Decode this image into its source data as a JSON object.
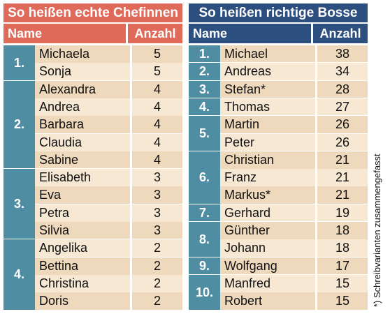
{
  "left": {
    "title": "So heißen echte Chefinnen",
    "col_name": "Name",
    "col_count": "Anzahl",
    "title_color": "#e06a5a",
    "header_color": "#e06a5a",
    "rank_color": "#4e8da2",
    "row_light": "#f7e8d4",
    "row_dark": "#efd9bd",
    "groups": [
      {
        "rank": "1.",
        "rows": [
          {
            "name": "Michaela",
            "count": "5"
          },
          {
            "name": "Sonja",
            "count": "5"
          }
        ]
      },
      {
        "rank": "2.",
        "rows": [
          {
            "name": "Alexandra",
            "count": "4"
          },
          {
            "name": "Andrea",
            "count": "4"
          },
          {
            "name": "Barbara",
            "count": "4"
          },
          {
            "name": "Claudia",
            "count": "4"
          },
          {
            "name": "Sabine",
            "count": "4"
          }
        ]
      },
      {
        "rank": "3.",
        "rows": [
          {
            "name": "Elisabeth",
            "count": "3"
          },
          {
            "name": "Eva",
            "count": "3"
          },
          {
            "name": "Petra",
            "count": "3"
          },
          {
            "name": "Silvia",
            "count": "3"
          }
        ]
      },
      {
        "rank": "4.",
        "rows": [
          {
            "name": "Angelika",
            "count": "2"
          },
          {
            "name": "Bettina",
            "count": "2"
          },
          {
            "name": "Christina",
            "count": "2"
          },
          {
            "name": "Doris",
            "count": "2"
          }
        ]
      }
    ]
  },
  "right": {
    "title": "So heißen richtige Bosse",
    "col_name": "Name",
    "col_count": "Anzahl",
    "title_color": "#2d4f7f",
    "header_color": "#2d4f7f",
    "rank_color": "#4e8da2",
    "row_light": "#f7e8d4",
    "row_dark": "#efd9bd",
    "groups": [
      {
        "rank": "1.",
        "rows": [
          {
            "name": "Michael",
            "count": "38"
          }
        ]
      },
      {
        "rank": "2.",
        "rows": [
          {
            "name": "Andreas",
            "count": "34"
          }
        ]
      },
      {
        "rank": "3.",
        "rows": [
          {
            "name": "Stefan*",
            "count": "28"
          }
        ]
      },
      {
        "rank": "4.",
        "rows": [
          {
            "name": "Thomas",
            "count": "27"
          }
        ]
      },
      {
        "rank": "5.",
        "rows": [
          {
            "name": "Martin",
            "count": "26"
          },
          {
            "name": "Peter",
            "count": "26"
          }
        ]
      },
      {
        "rank": "6.",
        "rows": [
          {
            "name": "Christian",
            "count": "21"
          },
          {
            "name": "Franz",
            "count": "21"
          },
          {
            "name": "Markus*",
            "count": "21"
          }
        ]
      },
      {
        "rank": "7.",
        "rows": [
          {
            "name": "Gerhard",
            "count": "19"
          }
        ]
      },
      {
        "rank": "8.",
        "rows": [
          {
            "name": "Günther",
            "count": "18"
          },
          {
            "name": "Johann",
            "count": "18"
          }
        ]
      },
      {
        "rank": "9.",
        "rows": [
          {
            "name": "Wolfgang",
            "count": "17"
          }
        ]
      },
      {
        "rank": "10.",
        "rows": [
          {
            "name": "Manfred",
            "count": "15"
          },
          {
            "name": "Robert",
            "count": "15"
          }
        ]
      }
    ]
  },
  "footnote": "*) Schreibvarianten zusammengefasst"
}
